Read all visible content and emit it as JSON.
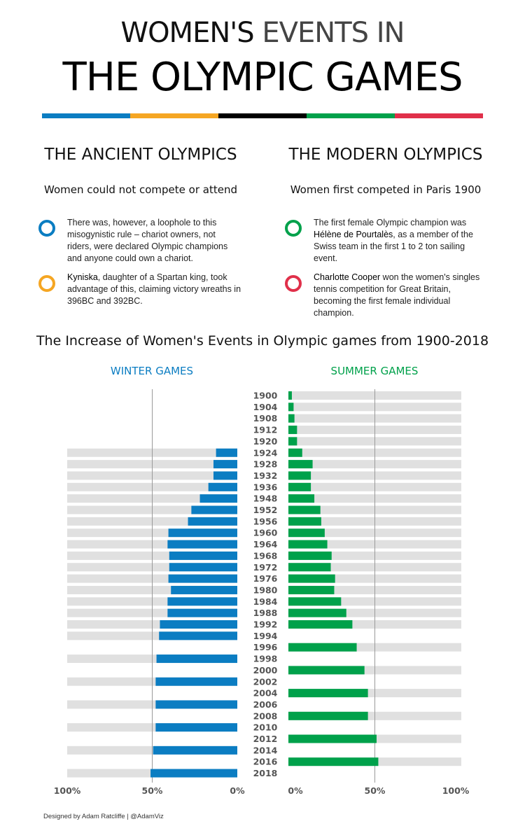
{
  "header": {
    "title_line1_a": "WOMEN'S",
    "title_line1_b": "EVENTS IN",
    "title_line2": "THE OLYMPIC GAMES"
  },
  "colors": {
    "blue": "#0b7dc2",
    "yellow": "#f5a623",
    "black": "#000000",
    "green": "#00a14b",
    "red": "#e0304a",
    "track": "#e0e0e0"
  },
  "ancient": {
    "heading": "THE ANCIENT OLYMPICS",
    "subheading": "Women could not compete or attend",
    "note1": "There was, however, a loophole to this misogynistic rule – chariot owners, not riders, were declared Olympic champions and anyone could own a chariot.",
    "note2_bold": "Kyniska",
    "note2_rest": ", daughter of a Spartan king, took advantage of this, claiming victory wreaths in 396BC and 392BC."
  },
  "modern": {
    "heading": "THE MODERN OLYMPICS",
    "subheading": "Women first competed in Paris 1900",
    "note1_pre": "The first female Olympic champion was ",
    "note1_bold": "Hélène de Pourtalès",
    "note1_post": ", as a member of the Swiss team in the first 1 to 2 ton sailing event.",
    "note2_bold": "Charlotte Cooper",
    "note2_rest": " won the women's singles tennis competition for Great Britain, becoming the first female individual champion."
  },
  "chart_title": "The Increase of Women's Events in Olympic games from 1900-2018",
  "credit": "Designed by Adam Ratcliffe | @AdamViz",
  "chart_data": [
    {
      "type": "bar",
      "title": "WINTER GAMES",
      "orientation": "horizontal",
      "unit": "share of events for women (%)",
      "xlim": [
        0,
        100
      ],
      "x_reversed": true,
      "reference_line": 50,
      "tick_labels": [
        "100%",
        "50%",
        "0%"
      ],
      "categories": [
        "1924",
        "1928",
        "1932",
        "1936",
        "1948",
        "1952",
        "1956",
        "1960",
        "1964",
        "1968",
        "1972",
        "1976",
        "1980",
        "1984",
        "1988",
        "1992",
        "1994",
        "1998",
        "2002",
        "2006",
        "2010",
        "2014",
        "2018"
      ],
      "values": [
        12.5,
        14,
        14,
        17,
        22,
        27,
        29,
        40.5,
        41,
        40,
        40,
        40.5,
        39,
        41,
        41,
        45.5,
        46,
        47.5,
        48,
        48,
        48,
        49.5,
        51
      ]
    },
    {
      "type": "bar",
      "title": "SUMMER GAMES",
      "orientation": "horizontal",
      "unit": "share of events for women (%)",
      "xlim": [
        0,
        100
      ],
      "reference_line": 50,
      "tick_labels": [
        "0%",
        "50%",
        "100%"
      ],
      "categories": [
        "1900",
        "1904",
        "1908",
        "1912",
        "1920",
        "1924",
        "1928",
        "1932",
        "1936",
        "1948",
        "1952",
        "1956",
        "1960",
        "1964",
        "1968",
        "1972",
        "1976",
        "1980",
        "1984",
        "1988",
        "1992",
        "1996",
        "2000",
        "2004",
        "2008",
        "2012",
        "2016"
      ],
      "values": [
        2,
        3,
        3.5,
        5,
        5,
        8,
        14,
        13,
        13,
        15,
        18.5,
        19,
        21,
        22.5,
        25,
        24.5,
        27,
        26.5,
        30.5,
        33.5,
        37,
        39.5,
        44,
        46,
        46,
        51,
        52
      ]
    }
  ]
}
